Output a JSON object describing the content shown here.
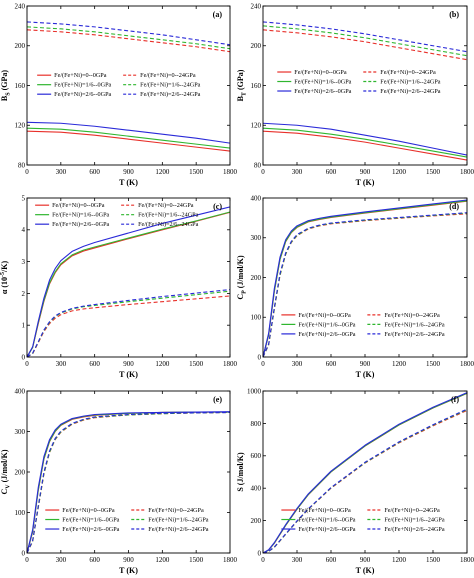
{
  "figure": {
    "description_panels": [
      "a",
      "b",
      "c",
      "d",
      "e",
      "f"
    ]
  },
  "legend_entries": [
    {
      "label": "Fe/(Fe+Ni)=0--0GPa",
      "color": "#e8302a",
      "dash": false
    },
    {
      "label": "Fe/(Fe+Ni)=0--24GPa",
      "color": "#e8302a",
      "dash": true
    },
    {
      "label": "Fe/(Fe+Ni)=1/6--0GPa",
      "color": "#2fb62f",
      "dash": false
    },
    {
      "label": "Fe/(Fe+Ni)=1/6--24GPa",
      "color": "#2fb62f",
      "dash": true
    },
    {
      "label": "Fe/(Fe+Ni)=2/6--0GPa",
      "color": "#2a2ad8",
      "dash": false
    },
    {
      "label": "Fe/(Fe+Ni)=2/6--24GPa",
      "color": "#2a2ad8",
      "dash": true
    }
  ],
  "chart_data": [
    {
      "type": "line",
      "panel_label": "(a)",
      "xlabel": "T (K)",
      "ylabel_main": "B",
      "ylabel_sub": "S",
      "ylabel_unit": " (GPa)",
      "xlim": [
        0,
        1800
      ],
      "ylim": [
        80,
        240
      ],
      "xticks": [
        0,
        300,
        600,
        900,
        1200,
        1500,
        1800
      ],
      "yticks": [
        80,
        120,
        160,
        200,
        240
      ],
      "legend_position": "middle-left",
      "x": [
        0,
        300,
        600,
        900,
        1200,
        1500,
        1800
      ],
      "series": [
        {
          "name": "Fe/(Fe+Ni)=0--0GPa",
          "color": "#e8302a",
          "dash": false,
          "values": [
            114,
            113,
            110,
            106,
            102,
            98,
            94
          ]
        },
        {
          "name": "Fe/(Fe+Ni)=0--24GPa",
          "color": "#e8302a",
          "dash": true,
          "values": [
            216,
            214,
            211,
            207,
            203,
            199,
            194
          ]
        },
        {
          "name": "Fe/(Fe+Ni)=1/6--0GPa",
          "color": "#2fb62f",
          "dash": false,
          "values": [
            117,
            116,
            113,
            109,
            105,
            101,
            97
          ]
        },
        {
          "name": "Fe/(Fe+Ni)=1/6--24GPa",
          "color": "#2fb62f",
          "dash": true,
          "values": [
            219,
            217,
            214,
            210,
            206,
            202,
            197
          ]
        },
        {
          "name": "Fe/(Fe+Ni)=2/6--0GPa",
          "color": "#2a2ad8",
          "dash": false,
          "values": [
            123,
            122,
            119,
            115,
            111,
            107,
            102
          ]
        },
        {
          "name": "Fe/(Fe+Ni)=2/6--24GPa",
          "color": "#2a2ad8",
          "dash": true,
          "values": [
            224,
            222,
            219,
            215,
            211,
            206,
            201
          ]
        }
      ]
    },
    {
      "type": "line",
      "panel_label": "(b)",
      "xlabel": "T (K)",
      "ylabel_main": "B",
      "ylabel_sub": "T",
      "ylabel_unit": " (GPa)",
      "xlim": [
        0,
        1800
      ],
      "ylim": [
        80,
        240
      ],
      "xticks": [
        0,
        300,
        600,
        900,
        1200,
        1500,
        1800
      ],
      "yticks": [
        80,
        120,
        160,
        200,
        240
      ],
      "legend_position": "middle-right",
      "x": [
        0,
        300,
        600,
        900,
        1200,
        1500,
        1800
      ],
      "series": [
        {
          "name": "Fe/(Fe+Ni)=0--0GPa",
          "color": "#e8302a",
          "dash": false,
          "values": [
            114,
            112,
            108,
            103,
            97,
            91,
            85
          ]
        },
        {
          "name": "Fe/(Fe+Ni)=0--24GPa",
          "color": "#e8302a",
          "dash": true,
          "values": [
            216,
            213,
            209,
            204,
            198,
            192,
            186
          ]
        },
        {
          "name": "Fe/(Fe+Ni)=1/6--0GPa",
          "color": "#2fb62f",
          "dash": false,
          "values": [
            117,
            115,
            111,
            106,
            100,
            94,
            88
          ]
        },
        {
          "name": "Fe/(Fe+Ni)=1/6--24GPa",
          "color": "#2fb62f",
          "dash": true,
          "values": [
            220,
            217,
            213,
            208,
            202,
            196,
            190
          ]
        },
        {
          "name": "Fe/(Fe+Ni)=2/6--0GPa",
          "color": "#2a2ad8",
          "dash": false,
          "values": [
            122,
            120,
            116,
            110,
            104,
            97,
            90
          ]
        },
        {
          "name": "Fe/(Fe+Ni)=2/6--24GPa",
          "color": "#2a2ad8",
          "dash": true,
          "values": [
            224,
            221,
            217,
            212,
            206,
            200,
            194
          ]
        }
      ]
    },
    {
      "type": "line",
      "panel_label": "(c)",
      "xlabel": "T (K)",
      "ylabel_main": "α (10",
      "ylabel_sup": "-5",
      "ylabel_unit": "/K)",
      "xlim": [
        0,
        1800
      ],
      "ylim": [
        0,
        5
      ],
      "xticks": [
        0,
        300,
        600,
        900,
        1200,
        1500,
        1800
      ],
      "yticks": [
        0,
        1,
        2,
        3,
        4,
        5
      ],
      "legend_position": "top",
      "x": [
        0,
        50,
        100,
        150,
        200,
        250,
        300,
        400,
        500,
        600,
        900,
        1200,
        1500,
        1800
      ],
      "series": [
        {
          "name": "Fe/(Fe+Ni)=0--0GPa",
          "color": "#e8302a",
          "dash": false,
          "values": [
            0,
            0.3,
            1.05,
            1.75,
            2.3,
            2.65,
            2.9,
            3.18,
            3.33,
            3.43,
            3.72,
            4.0,
            4.27,
            4.55
          ]
        },
        {
          "name": "Fe/(Fe+Ni)=0--24GPa",
          "color": "#e8302a",
          "dash": true,
          "values": [
            0,
            0.1,
            0.45,
            0.8,
            1.05,
            1.22,
            1.33,
            1.45,
            1.51,
            1.55,
            1.65,
            1.74,
            1.83,
            1.92
          ]
        },
        {
          "name": "Fe/(Fe+Ni)=1/6--0GPa",
          "color": "#2fb62f",
          "dash": false,
          "values": [
            0,
            0.3,
            1.08,
            1.78,
            2.33,
            2.68,
            2.93,
            3.21,
            3.36,
            3.46,
            3.74,
            4.02,
            4.28,
            4.56
          ]
        },
        {
          "name": "Fe/(Fe+Ni)=1/6--24GPa",
          "color": "#2fb62f",
          "dash": true,
          "values": [
            0,
            0.11,
            0.47,
            0.83,
            1.09,
            1.27,
            1.38,
            1.51,
            1.58,
            1.62,
            1.74,
            1.85,
            1.96,
            2.07
          ]
        },
        {
          "name": "Fe/(Fe+Ni)=2/6--0GPa",
          "color": "#2a2ad8",
          "dash": false,
          "values": [
            0,
            0.32,
            1.12,
            1.85,
            2.42,
            2.78,
            3.03,
            3.32,
            3.48,
            3.6,
            3.9,
            4.2,
            4.46,
            4.72
          ]
        },
        {
          "name": "Fe/(Fe+Ni)=2/6--24GPa",
          "color": "#2a2ad8",
          "dash": true,
          "values": [
            0,
            0.12,
            0.48,
            0.85,
            1.11,
            1.29,
            1.4,
            1.53,
            1.6,
            1.65,
            1.78,
            1.9,
            2.01,
            2.12
          ]
        }
      ]
    },
    {
      "type": "line",
      "panel_label": "(d)",
      "xlabel": "T (K)",
      "ylabel_main": "C",
      "ylabel_sub": "P",
      "ylabel_unit": " (J/mol/K)",
      "xlim": [
        0,
        1800
      ],
      "ylim": [
        0,
        400
      ],
      "xticks": [
        0,
        300,
        600,
        900,
        1200,
        1500,
        1800
      ],
      "yticks": [
        0,
        100,
        200,
        300,
        400
      ],
      "legend_position": "bottom-right",
      "x": [
        0,
        50,
        100,
        150,
        200,
        250,
        300,
        400,
        500,
        600,
        900,
        1200,
        1500,
        1800
      ],
      "series": [
        {
          "name": "Fe/(Fe+Ni)=0--0GPa",
          "color": "#e8302a",
          "dash": false,
          "values": [
            0,
            55,
            165,
            245,
            290,
            313,
            326,
            340,
            346,
            351,
            362,
            372,
            382,
            392
          ]
        },
        {
          "name": "Fe/(Fe+Ni)=0--24GPa",
          "color": "#e8302a",
          "dash": true,
          "values": [
            0,
            30,
            120,
            205,
            258,
            288,
            305,
            322,
            330,
            335,
            343,
            349,
            355,
            360
          ]
        },
        {
          "name": "Fe/(Fe+Ni)=1/6--0GPa",
          "color": "#2fb62f",
          "dash": false,
          "values": [
            0,
            56,
            166,
            246,
            291,
            314,
            327,
            341,
            347,
            352,
            363,
            373,
            383,
            393
          ]
        },
        {
          "name": "Fe/(Fe+Ni)=1/6--24GPa",
          "color": "#2fb62f",
          "dash": true,
          "values": [
            0,
            31,
            121,
            206,
            259,
            289,
            306,
            323,
            331,
            336,
            344,
            350,
            356,
            362
          ]
        },
        {
          "name": "Fe/(Fe+Ni)=2/6--0GPa",
          "color": "#2a2ad8",
          "dash": false,
          "values": [
            0,
            60,
            172,
            251,
            295,
            317,
            330,
            343,
            349,
            354,
            365,
            375,
            385,
            395
          ]
        },
        {
          "name": "Fe/(Fe+Ni)=2/6--24GPa",
          "color": "#2a2ad8",
          "dash": true,
          "values": [
            0,
            33,
            125,
            210,
            262,
            291,
            308,
            324,
            332,
            337,
            345,
            351,
            357,
            363
          ]
        }
      ]
    },
    {
      "type": "line",
      "panel_label": "(e)",
      "xlabel": "T (K)",
      "ylabel_main": "C",
      "ylabel_sub": "V",
      "ylabel_unit": " (J/mol/K)",
      "xlim": [
        0,
        1800
      ],
      "ylim": [
        0,
        400
      ],
      "xticks": [
        0,
        300,
        600,
        900,
        1200,
        1500,
        1800
      ],
      "yticks": [
        0,
        100,
        200,
        300,
        400
      ],
      "legend_position": "bottom-right",
      "x": [
        0,
        50,
        100,
        150,
        200,
        250,
        300,
        400,
        500,
        600,
        900,
        1200,
        1500,
        1800
      ],
      "series": [
        {
          "name": "Fe/(Fe+Ni)=0--0GPa",
          "color": "#e8302a",
          "dash": false,
          "values": [
            0,
            52,
            155,
            232,
            275,
            300,
            315,
            330,
            336,
            340,
            345,
            347,
            348,
            348
          ]
        },
        {
          "name": "Fe/(Fe+Ni)=0--24GPa",
          "color": "#e8302a",
          "dash": true,
          "values": [
            0,
            28,
            112,
            195,
            248,
            280,
            298,
            318,
            328,
            334,
            341,
            344,
            346,
            347
          ]
        },
        {
          "name": "Fe/(Fe+Ni)=1/6--0GPa",
          "color": "#2fb62f",
          "dash": false,
          "values": [
            0,
            53,
            156,
            233,
            276,
            301,
            316,
            331,
            337,
            341,
            345,
            347,
            348,
            348
          ]
        },
        {
          "name": "Fe/(Fe+Ni)=1/6--24GPa",
          "color": "#2fb62f",
          "dash": true,
          "values": [
            0,
            29,
            113,
            196,
            249,
            281,
            299,
            319,
            329,
            335,
            341,
            344,
            346,
            347
          ]
        },
        {
          "name": "Fe/(Fe+Ni)=2/6--0GPa",
          "color": "#2a2ad8",
          "dash": false,
          "values": [
            0,
            57,
            162,
            238,
            280,
            304,
            318,
            332,
            338,
            342,
            346,
            347,
            348,
            349
          ]
        },
        {
          "name": "Fe/(Fe+Ni)=2/6--24GPa",
          "color": "#2a2ad8",
          "dash": true,
          "values": [
            0,
            31,
            117,
            200,
            252,
            283,
            301,
            320,
            330,
            336,
            342,
            345,
            346,
            347
          ]
        }
      ]
    },
    {
      "type": "line",
      "panel_label": "(f)",
      "xlabel": "T (K)",
      "ylabel_main": "S (J/mol/K)",
      "xlim": [
        0,
        1800
      ],
      "ylim": [
        0,
        1000
      ],
      "xticks": [
        0,
        300,
        600,
        900,
        1200,
        1500,
        1800
      ],
      "yticks": [
        0,
        200,
        400,
        600,
        800,
        1000
      ],
      "legend_position": "bottom-right",
      "x": [
        0,
        50,
        100,
        200,
        300,
        400,
        600,
        900,
        1200,
        1500,
        1800
      ],
      "series": [
        {
          "name": "Fe/(Fe+Ni)=0--0GPa",
          "color": "#e8302a",
          "dash": false,
          "values": [
            0,
            18,
            60,
            170,
            270,
            360,
            500,
            660,
            790,
            895,
            985
          ]
        },
        {
          "name": "Fe/(Fe+Ni)=0--24GPa",
          "color": "#e8302a",
          "dash": true,
          "values": [
            0,
            10,
            35,
            115,
            195,
            270,
            400,
            555,
            680,
            785,
            880
          ]
        },
        {
          "name": "Fe/(Fe+Ni)=1/6--0GPa",
          "color": "#2fb62f",
          "dash": false,
          "values": [
            0,
            18,
            61,
            171,
            271,
            361,
            501,
            661,
            791,
            896,
            986
          ]
        },
        {
          "name": "Fe/(Fe+Ni)=1/6--24GPa",
          "color": "#2fb62f",
          "dash": true,
          "values": [
            0,
            10,
            35,
            116,
            196,
            271,
            402,
            557,
            683,
            789,
            885
          ]
        },
        {
          "name": "Fe/(Fe+Ni)=2/6--0GPa",
          "color": "#2a2ad8",
          "dash": false,
          "values": [
            0,
            20,
            64,
            175,
            275,
            365,
            505,
            665,
            795,
            900,
            990
          ]
        },
        {
          "name": "Fe/(Fe+Ni)=2/6--24GPa",
          "color": "#2a2ad8",
          "dash": true,
          "values": [
            0,
            11,
            37,
            118,
            198,
            273,
            404,
            560,
            686,
            792,
            888
          ]
        }
      ]
    }
  ]
}
